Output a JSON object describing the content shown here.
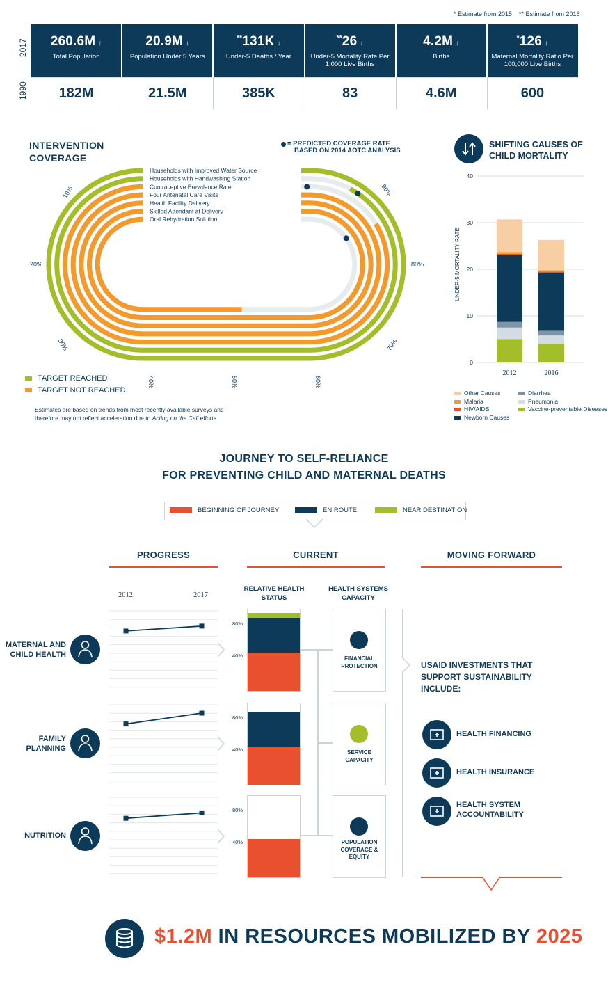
{
  "footnotes": {
    "one": "* Estimate from 2015",
    "two": "** Estimate from 2016"
  },
  "stats": {
    "year_top": "2017",
    "year_bottom": "1990",
    "items": [
      {
        "value": "260.6M",
        "prefix": "",
        "label": "Total Population",
        "arrow": "up",
        "baseline": "182M"
      },
      {
        "value": "20.9M",
        "prefix": "",
        "label": "Population Under 5 Years",
        "arrow": "down",
        "baseline": "21.5M"
      },
      {
        "value": "131K",
        "prefix": "**",
        "label": "Under-5 Deaths / Year",
        "arrow": "down",
        "baseline": "385K"
      },
      {
        "value": "26",
        "prefix": "**",
        "label": "Under-5 Mortality Rate Per 1,000 Live Births",
        "arrow": "down",
        "baseline": "83"
      },
      {
        "value": "4.2M",
        "prefix": "",
        "label": "Births",
        "arrow": "down",
        "baseline": "4.6M"
      },
      {
        "value": "126",
        "prefix": "*",
        "label": "Maternal Mortality Ratio Per 100,000 Live Births",
        "arrow": "down",
        "baseline": "600"
      }
    ]
  },
  "coverage": {
    "title_line1": "INTERVENTION",
    "title_line2": "COVERAGE",
    "predicted_line1": "= PREDICTED COVERAGE RATE",
    "predicted_line2": "BASED ON 2014 AOTC ANALYSIS",
    "tracks": [
      {
        "label": "Households with Improved Water Source",
        "value": 90,
        "predicted": 90,
        "target_reached": true
      },
      {
        "label": "Households with Handwashing Station",
        "value": 76,
        "predicted": 75,
        "target_reached": true
      },
      {
        "label": "Contraceptive Prevalence Rate",
        "value": 70,
        "predicted": 80,
        "target_reached": false
      },
      {
        "label": "Four Antenatal Care Visits",
        "value": 80,
        "predicted": 81,
        "target_reached": false
      },
      {
        "label": "Health Facility Delivery",
        "value": 84,
        "predicted": 85,
        "target_reached": false
      },
      {
        "label": "Skilled Attendant at Delivery",
        "value": 86,
        "predicted": 89,
        "target_reached": false
      },
      {
        "label": "Oral Rehydration Solution",
        "value": 39,
        "predicted": 66,
        "target_reached": false
      }
    ],
    "ticks": {
      "t10": "10%",
      "t20": "20%",
      "t30": "30%",
      "t40": "40%",
      "t50": "50%",
      "t60": "60%",
      "t70": "70%",
      "t80": "80%",
      "t90": "90%"
    },
    "legend_reached": "TARGET REACHED",
    "legend_not_reached": "TARGET NOT REACHED",
    "note_a": "Estimates are based on trends from most recently available surveys and",
    "note_b": "therefore may not reflect acceleration due to ",
    "note_c": "Acting on the Call",
    "note_d": " efforts",
    "colors": {
      "reached": "#a4bd2b",
      "not_reached": "#f29a2e",
      "remaining": "#e6ebee"
    }
  },
  "chart_data": {
    "type": "bar",
    "title": "SHIFTING CAUSES OF CHILD MORTALITY",
    "ylabel": "UNDER-5 MORTALITY RATE",
    "ylim": [
      0,
      40
    ],
    "yticks": [
      "0",
      "10",
      "20",
      "30",
      "40"
    ],
    "categories": [
      "2012",
      "2016"
    ],
    "stacked": true,
    "series": [
      {
        "name": "Vaccine-preventable Diseases",
        "color": "#a4bd2b",
        "values": [
          5,
          4
        ]
      },
      {
        "name": "Pneumonia",
        "color": "#d3dce3",
        "values": [
          2.5,
          1.8
        ]
      },
      {
        "name": "Diarrhea",
        "color": "#7f93a6",
        "values": [
          1.2,
          1
        ]
      },
      {
        "name": "Newborn Causes",
        "color": "#0e3a5a",
        "values": [
          14.3,
          12.5
        ]
      },
      {
        "name": "HIV/AIDS",
        "color": "#e8502f",
        "values": [
          0.3,
          0.2
        ]
      },
      {
        "name": "Malaria",
        "color": "#f29a2e",
        "values": [
          0.4,
          0.3
        ]
      },
      {
        "name": "Other Causes",
        "color": "#f8cfa5",
        "values": [
          7,
          6.5
        ]
      }
    ],
    "legend_order": [
      "Other Causes",
      "Diarrhea",
      "Malaria",
      "Pneumonia",
      "HIV/AIDS",
      "Vaccine-preventable Diseases",
      "Newborn Causes"
    ]
  },
  "journey": {
    "title_line1": "JOURNEY TO SELF-RELIANCE",
    "title_line2": "FOR PREVENTING CHILD AND MATERNAL DEATHS",
    "legend": [
      {
        "label": "BEGINNING OF JOURNEY",
        "color": "#e8502f"
      },
      {
        "label": "EN ROUTE",
        "color": "#0e3a5a"
      },
      {
        "label": "NEAR DESTINATION",
        "color": "#a4bd2b"
      }
    ],
    "col_progress": "PROGRESS",
    "col_current": "CURRENT",
    "col_forward": "MOVING FORWARD",
    "year_start": "2012",
    "year_end": "2017",
    "sub_status_line1": "RELATIVE HEALTH",
    "sub_status_line2": "STATUS",
    "sub_capacity_line1": "HEALTH SYSTEMS",
    "sub_capacity_line2": "CAPACITY",
    "tick_80": "80%",
    "tick_40": "40%",
    "rows": [
      {
        "label_line1": "MATERNAL AND",
        "label_line2": "CHILD HEALTH",
        "icon": "mother-child-icon",
        "progress": [
          0.35,
          0.62
        ],
        "status": {
          "beginning": 40,
          "en_route": 37,
          "near": 5
        },
        "capacity_line1": "FINANCIAL",
        "capacity_line2": "PROTECTION",
        "capacity_line3": "",
        "capacity_color": "#0e3a5a"
      },
      {
        "label_line1": "FAMILY",
        "label_line2": "PLANNING",
        "icon": "family-planning-icon",
        "progress": [
          0.4,
          1.0
        ],
        "status": {
          "beginning": 40,
          "en_route": 36,
          "near": 0
        },
        "capacity_line1": "SERVICE",
        "capacity_line2": "CAPACITY",
        "capacity_line3": "",
        "capacity_color": "#a4bd2b"
      },
      {
        "label_line1": "NUTRITION",
        "label_line2": "",
        "icon": "nutrition-icon",
        "progress": [
          0.3,
          0.6
        ],
        "status": {
          "beginning": 40,
          "en_route": 0,
          "near": 0
        },
        "capacity_line1": "POPULATION",
        "capacity_line2": "COVERAGE &",
        "capacity_line3": "EQUITY",
        "capacity_color": "#0e3a5a"
      }
    ],
    "investments_line1": "USAID INVESTMENTS THAT",
    "investments_line2": "SUPPORT SUSTAINABILITY",
    "investments_line3": "INCLUDE:",
    "investments": [
      {
        "line1": "HEALTH FINANCING",
        "line2": "",
        "icon": "hospital-icon"
      },
      {
        "line1": "HEALTH INSURANCE",
        "line2": "",
        "icon": "insurance-card-icon"
      },
      {
        "line1": "HEALTH SYSTEM",
        "line2": "ACCOUNTABILITY",
        "icon": "magnifier-icon"
      }
    ]
  },
  "resources": {
    "amount": "$1.2M",
    "middle": " IN RESOURCES MOBILIZED BY ",
    "year": "2025",
    "icon": "coins-icon"
  }
}
